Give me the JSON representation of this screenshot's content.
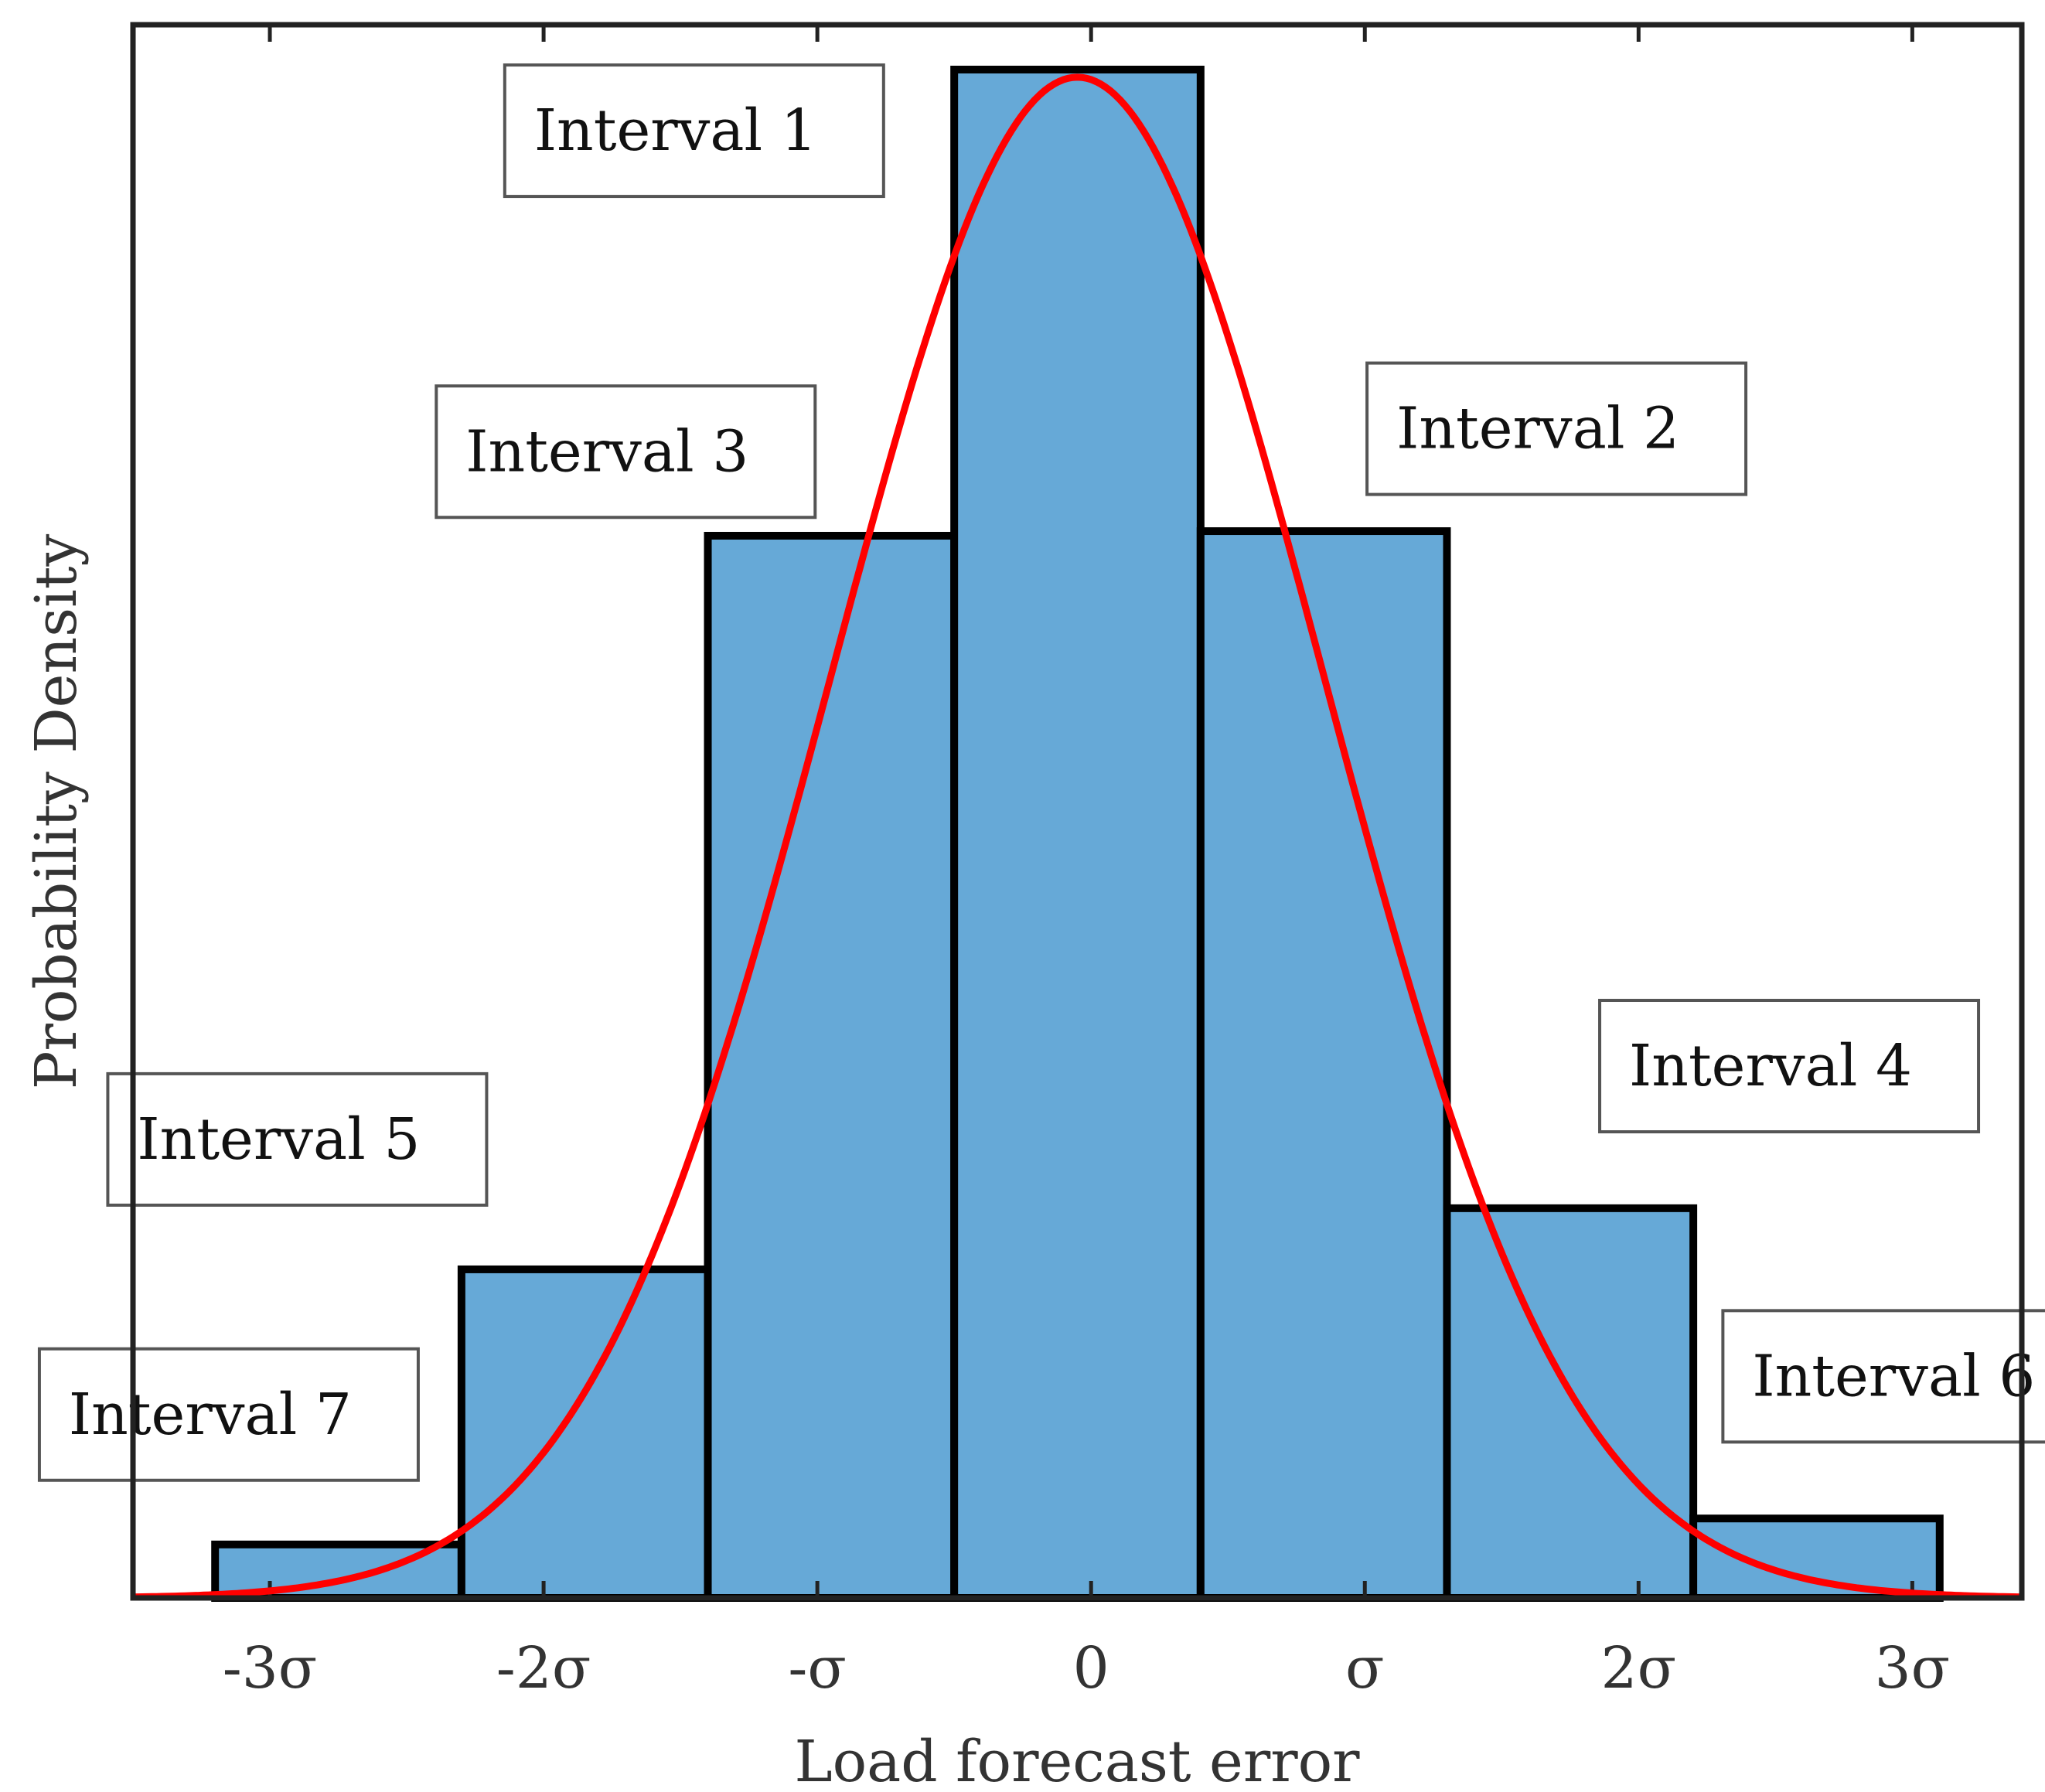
{
  "chart_data": {
    "type": "bar",
    "xlabel": "Load forecast error",
    "ylabel": "Probability Density",
    "x_ticks": [
      {
        "value": -3,
        "label": "-3σ"
      },
      {
        "value": -2,
        "label": "-2σ"
      },
      {
        "value": -1,
        "label": "-σ"
      },
      {
        "value": 0,
        "label": "0"
      },
      {
        "value": 1,
        "label": "σ"
      },
      {
        "value": 2,
        "label": "2σ"
      },
      {
        "value": 3,
        "label": "3σ"
      }
    ],
    "xlim": [
      -3.5,
      3.4
    ],
    "ylim": [
      0,
      1.0
    ],
    "bars": [
      {
        "x0": -3.2,
        "x1": -2.3,
        "value": 0.035
      },
      {
        "x0": -2.3,
        "x1": -1.4,
        "value": 0.215
      },
      {
        "x0": -1.4,
        "x1": -0.5,
        "value": 0.695
      },
      {
        "x0": -0.5,
        "x1": 0.4,
        "value": 1.0
      },
      {
        "x0": 0.4,
        "x1": 1.3,
        "value": 0.698
      },
      {
        "x0": 1.3,
        "x1": 2.2,
        "value": 0.255
      },
      {
        "x0": 2.2,
        "x1": 3.1,
        "value": 0.052
      }
    ],
    "curve": {
      "type": "normal",
      "mean": -0.05,
      "sigma": 0.9,
      "peak": 0.995
    },
    "bar_color": "#66a9d7",
    "bar_edge_color": "#000000",
    "curve_color": "#ff0000",
    "annotations": [
      {
        "text": "Interval 1",
        "x": -1.45,
        "y": 0.96
      },
      {
        "text": "Interval 2",
        "x": 1.7,
        "y": 0.765
      },
      {
        "text": "Interval 3",
        "x": -1.7,
        "y": 0.75
      },
      {
        "text": "Interval 4",
        "x": 2.55,
        "y": 0.348
      },
      {
        "text": "Interval 5",
        "x": -2.9,
        "y": 0.3
      },
      {
        "text": "Interval 6",
        "x": 3.0,
        "y": 0.145
      },
      {
        "text": "Interval 7",
        "x": -3.15,
        "y": 0.12
      }
    ]
  }
}
